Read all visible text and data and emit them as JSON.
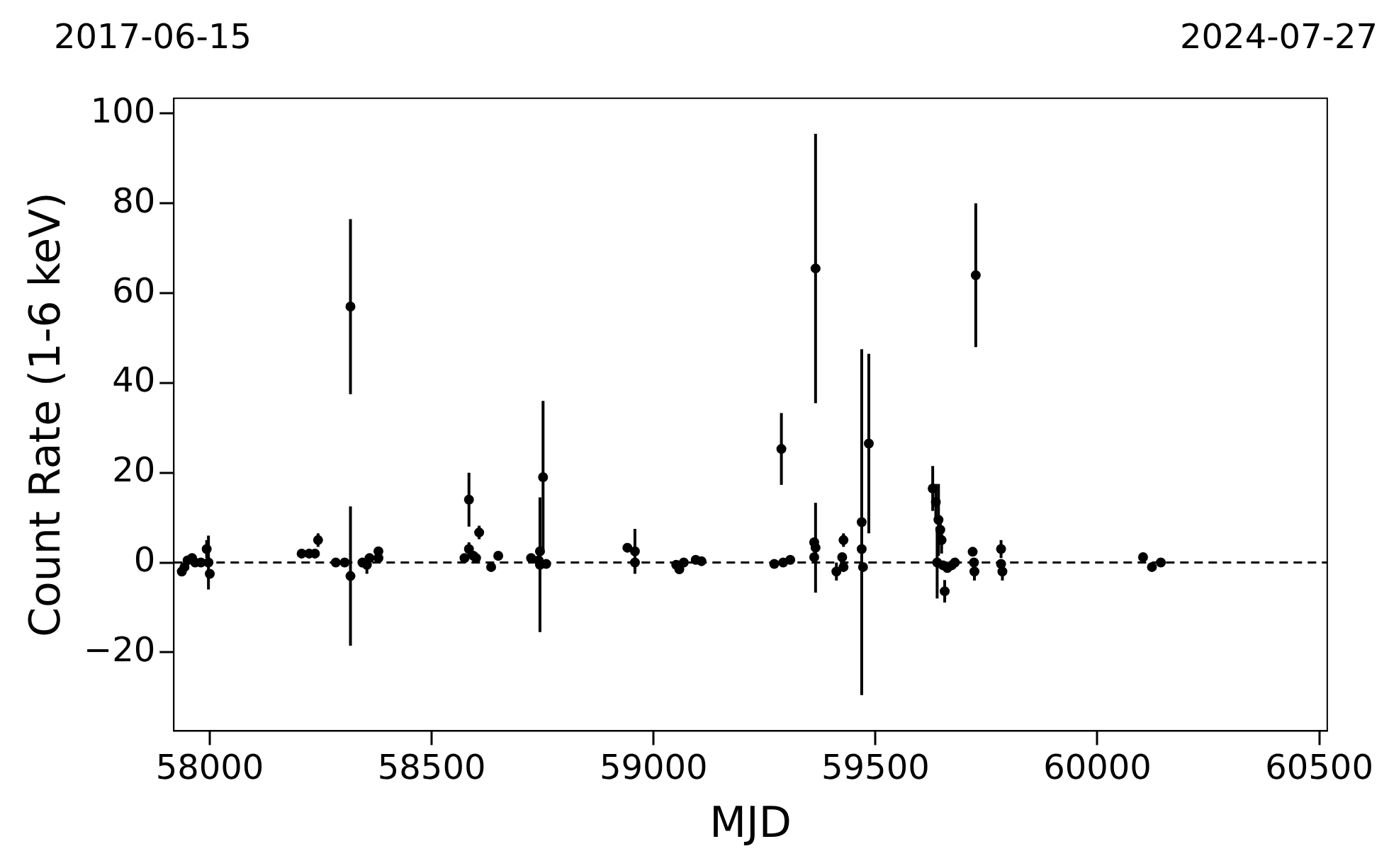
{
  "chart_data": {
    "type": "scatter",
    "xlabel": "MJD",
    "ylabel": "Count Rate (1-6 keV)",
    "marker": "circle",
    "grid": false,
    "legend": false,
    "xlim": [
      57919,
      60518
    ],
    "xticks": [
      58000,
      58500,
      59000,
      59500,
      60000,
      60500
    ],
    "annotations": [
      "2017-06-15",
      "2024-07-27"
    ],
    "ylim": [
      -37.5,
      103.4
    ],
    "yticks": [
      {
        "value": -20,
        "label": "−20"
      },
      0,
      20,
      40,
      60,
      80,
      100
    ],
    "ref_lines": [
      {
        "axis": "y",
        "value": 0,
        "color": "#000000",
        "line_style": "dashed"
      }
    ],
    "series": [
      {
        "color": "#000000",
        "x": [
          57937,
          57943,
          57950,
          57960,
          57967,
          57980,
          57993,
          57997,
          58000,
          58207,
          58224,
          58237,
          58244,
          58284,
          58304,
          58317,
          58317,
          58344,
          58354,
          58360,
          58380,
          58380,
          58574,
          58584,
          58584,
          58594,
          58600,
          58607,
          58634,
          58650,
          58724,
          58741,
          58744,
          58744,
          58751,
          58758,
          58941,
          58958,
          58958,
          59051,
          59058,
          59068,
          59095,
          59108,
          59272,
          59288,
          59292,
          59308,
          59362,
          59362,
          59365,
          59365,
          59412,
          59425,
          59428,
          59428,
          59469,
          59469,
          59472,
          59485,
          59629,
          59636,
          59639,
          59642,
          59646,
          59649,
          59652,
          59656,
          59662,
          59672,
          59679,
          59719,
          59722,
          59723,
          59726,
          59783,
          59783,
          59786,
          60103,
          60123,
          60143
        ],
        "values": [
          -2,
          -1,
          0.5,
          1,
          0,
          0,
          3,
          0,
          -2.5,
          2,
          2,
          2,
          5,
          0,
          0,
          57,
          -3,
          0,
          -0.5,
          1,
          2.5,
          1,
          1,
          14,
          3,
          1.5,
          1,
          6.7,
          -1,
          1.5,
          1,
          0.5,
          -0.5,
          2.5,
          19,
          -0.3,
          3.3,
          2.5,
          0,
          -0.5,
          -1.5,
          0,
          0.6,
          0.3,
          -0.3,
          25.3,
          0,
          0.6,
          4.5,
          1.2,
          3.3,
          65.5,
          -2,
          1.2,
          -1,
          5,
          9,
          3,
          -1,
          26.5,
          16.5,
          13.5,
          0,
          9.5,
          7.3,
          5,
          -0.6,
          -6.4,
          -1.2,
          -0.6,
          0,
          2.4,
          0,
          -2,
          64,
          3,
          -0.3,
          -2,
          1.2,
          -1,
          0
        ],
        "errors": [
          1,
          1,
          1,
          1,
          1,
          1,
          2,
          6,
          1,
          1,
          1,
          1,
          1.5,
          0.5,
          0.5,
          19.5,
          15.5,
          1,
          2,
          1,
          1,
          1,
          1,
          6,
          1.5,
          1,
          1,
          1.5,
          1,
          1,
          0.5,
          0.5,
          15,
          1,
          17,
          0.5,
          0.5,
          5,
          1,
          1,
          1,
          0.5,
          0.5,
          0.5,
          1,
          8,
          0.5,
          0.5,
          1,
          1,
          10,
          30,
          2,
          1,
          1,
          1.5,
          38.5,
          1,
          1,
          20,
          5,
          4,
          8,
          8,
          3,
          3,
          1,
          2.5,
          1,
          1,
          1,
          1,
          1,
          2,
          16,
          2,
          1,
          2,
          1,
          0.5,
          0.5
        ]
      }
    ]
  }
}
